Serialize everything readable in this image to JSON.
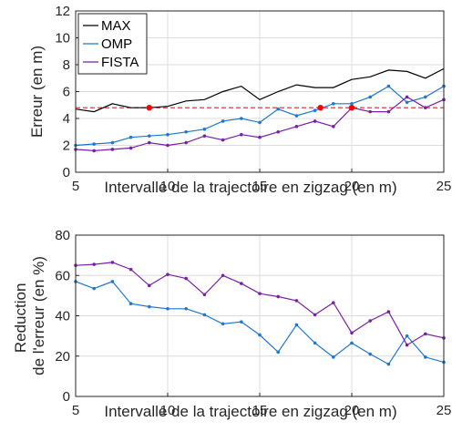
{
  "chart_data": [
    {
      "type": "line",
      "xlabel": "Intervalle de la trajectoire en zigzag (en m)",
      "ylabel": "Erreur (en m)",
      "xlim": [
        5,
        25
      ],
      "ylim": [
        0,
        12
      ],
      "xticks": [
        "5",
        "10",
        "15",
        "20",
        "25"
      ],
      "yticks": [
        "0",
        "2",
        "4",
        "6",
        "8",
        "10",
        "12"
      ],
      "grid": true,
      "legend": "top-left",
      "x": [
        5,
        6,
        7,
        8,
        9,
        10,
        11,
        12,
        13,
        14,
        15,
        16,
        17,
        18,
        19,
        20,
        21,
        22,
        23,
        24,
        25
      ],
      "series": [
        {
          "name": "MAX",
          "color": "#000000",
          "marker": "none",
          "values": [
            4.7,
            4.5,
            5.1,
            4.8,
            4.8,
            4.9,
            5.3,
            5.4,
            6.0,
            6.4,
            5.4,
            6.0,
            6.5,
            6.3,
            6.3,
            6.9,
            7.1,
            7.6,
            7.5,
            7.0,
            7.7
          ]
        },
        {
          "name": "OMP",
          "color": "#1f77d0",
          "marker": "dot",
          "values": [
            2.0,
            2.1,
            2.2,
            2.6,
            2.7,
            2.8,
            3.0,
            3.2,
            3.8,
            4.0,
            3.7,
            4.7,
            4.2,
            4.6,
            5.1,
            5.1,
            5.6,
            6.4,
            5.2,
            5.6,
            6.4
          ]
        },
        {
          "name": "FISTA",
          "color": "#7a1fa8",
          "marker": "dot",
          "values": [
            1.7,
            1.6,
            1.7,
            1.8,
            2.2,
            2.0,
            2.2,
            2.7,
            2.4,
            2.8,
            2.6,
            3.0,
            3.4,
            3.8,
            3.4,
            4.8,
            4.5,
            4.5,
            5.6,
            4.8,
            5.4
          ]
        }
      ],
      "reference_line": {
        "y": 4.8,
        "color": "#e02020",
        "style": "dashed"
      },
      "highlight_points": {
        "color": "#ff0000",
        "x": [
          9,
          18.3,
          20
        ],
        "y": [
          4.8,
          4.8,
          4.8
        ]
      }
    },
    {
      "type": "line",
      "xlabel": "Intervalle de la trajectoire en zigzag (en m)",
      "ylabel": [
        "Reduction",
        "de l'erreur (en %)"
      ],
      "xlim": [
        5,
        25
      ],
      "ylim": [
        0,
        80
      ],
      "xticks": [
        "5",
        "10",
        "15",
        "20",
        "25"
      ],
      "yticks": [
        "0",
        "20",
        "40",
        "60",
        "80"
      ],
      "grid": true,
      "legend": "none",
      "x": [
        5,
        6,
        7,
        8,
        9,
        10,
        11,
        12,
        13,
        14,
        15,
        16,
        17,
        18,
        19,
        20,
        21,
        22,
        23,
        24,
        25
      ],
      "series": [
        {
          "color": "#1f77d0",
          "marker": "dot",
          "values": [
            57,
            53.5,
            57,
            46,
            44.5,
            43.5,
            43.5,
            40.5,
            36,
            37,
            30.5,
            22,
            35.5,
            26.5,
            19.5,
            26.5,
            21,
            16,
            30,
            19.5,
            17
          ]
        },
        {
          "color": "#7a1fa8",
          "marker": "dot",
          "values": [
            65,
            65.5,
            66.5,
            63,
            55,
            60.5,
            58.5,
            50.5,
            60,
            56,
            51,
            49.5,
            47.5,
            40.5,
            46.5,
            31.5,
            37.5,
            42,
            25.5,
            31,
            29
          ]
        }
      ]
    }
  ]
}
